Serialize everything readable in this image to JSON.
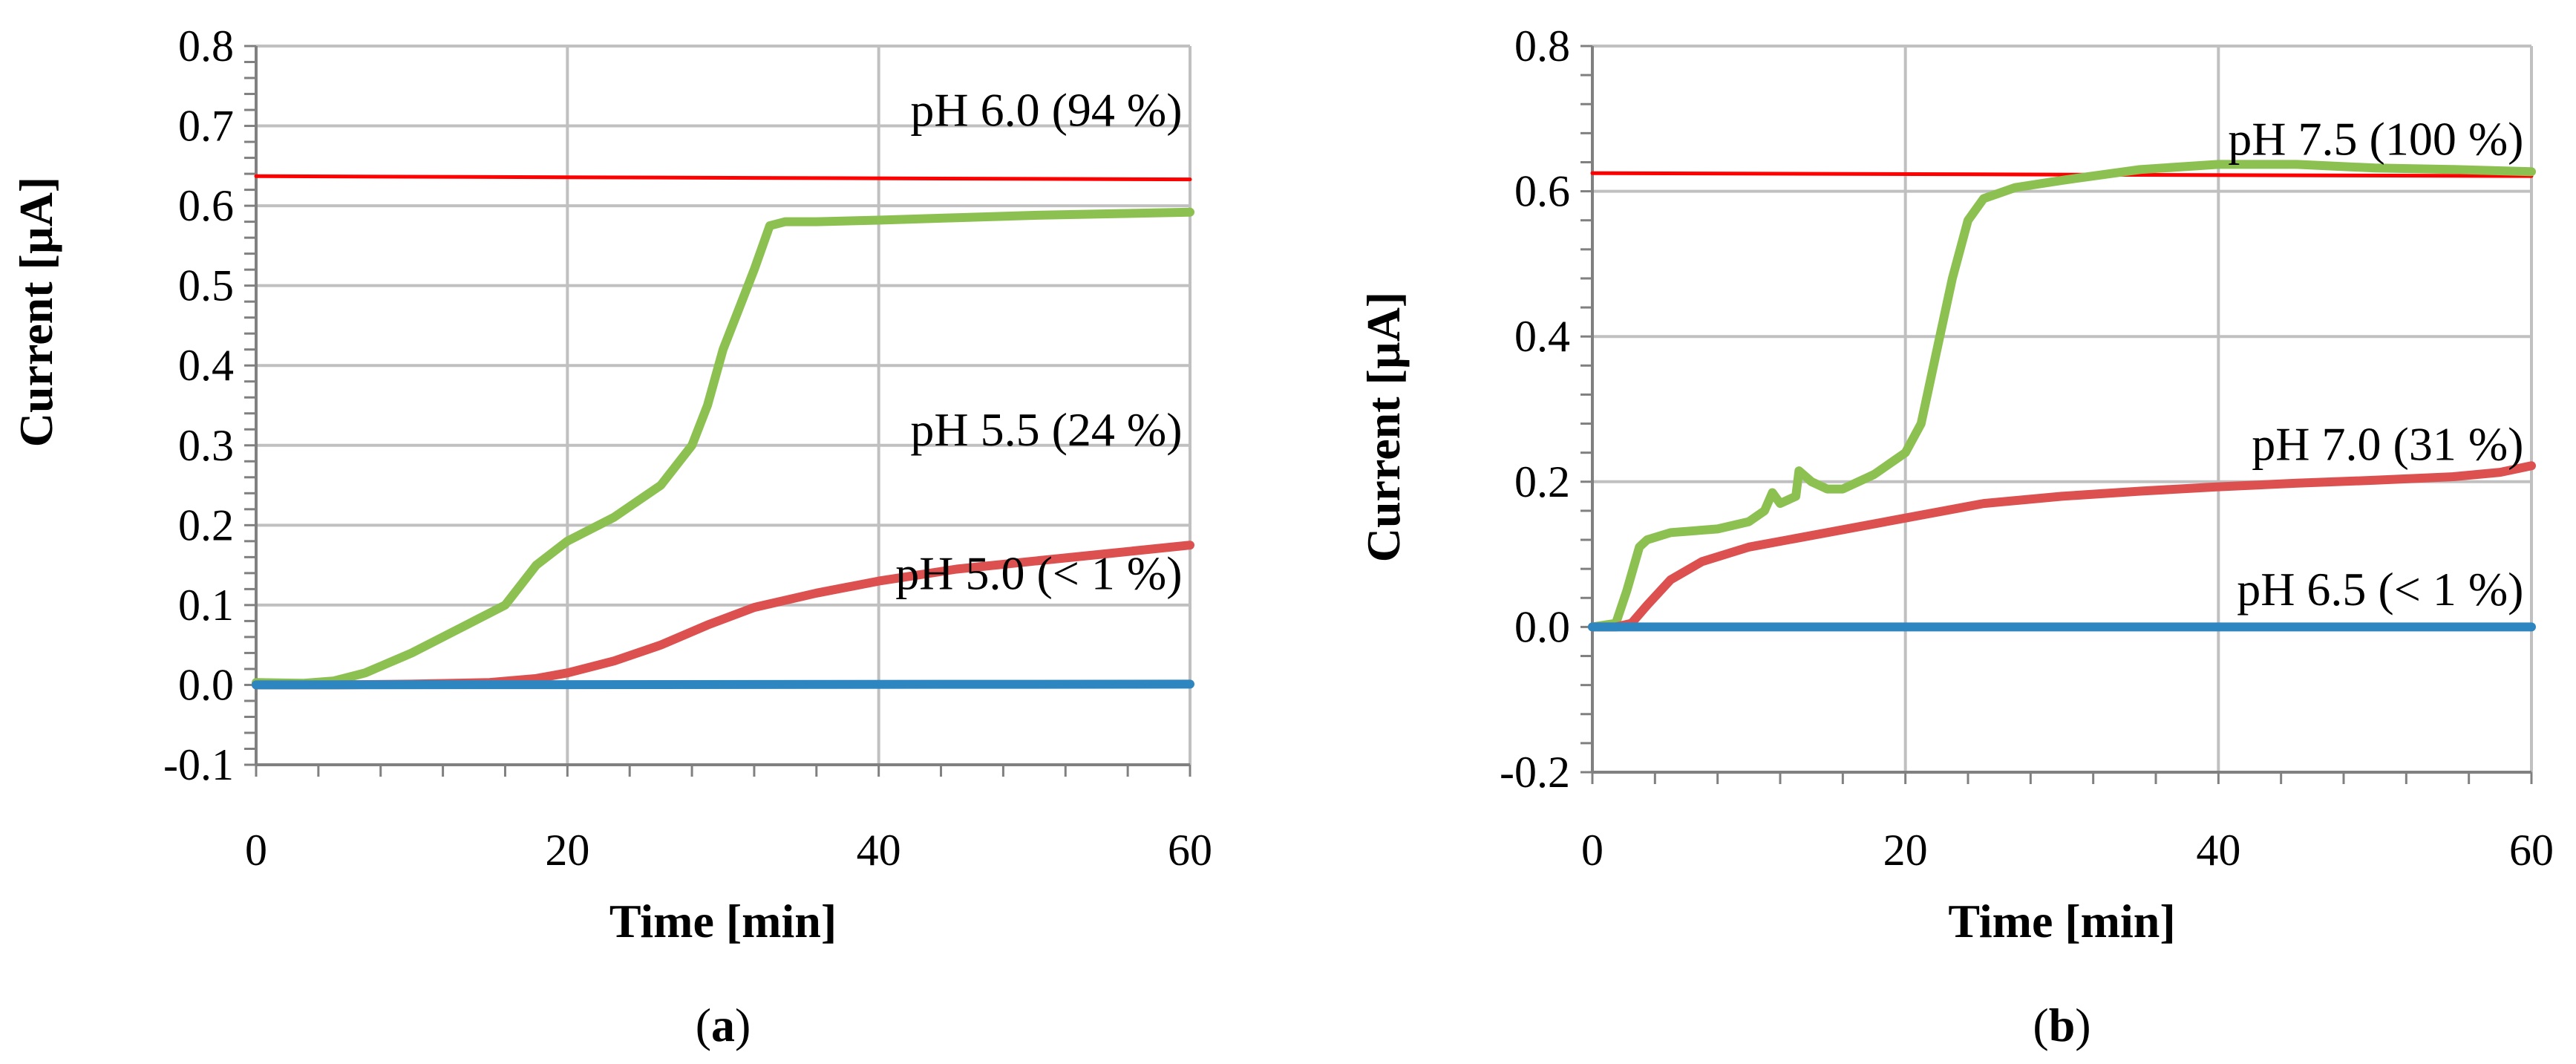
{
  "chart_data": [
    {
      "type": "line",
      "panel": "a",
      "caption": {
        "open": "(",
        "letter": "a",
        "close": ")"
      },
      "xlabel": "Time [min]",
      "ylabel": "Current [µA]",
      "xlim": [
        0,
        60
      ],
      "ylim": [
        -0.1,
        0.8
      ],
      "xticks": [
        0,
        20,
        40,
        60
      ],
      "xtick_labels": [
        "0",
        "20",
        "40",
        "60"
      ],
      "yticks": [
        -0.1,
        0.0,
        0.1,
        0.2,
        0.3,
        0.4,
        0.5,
        0.6,
        0.7,
        0.8
      ],
      "ytick_labels": [
        "-0.1",
        "0.0",
        "0.1",
        "0.2",
        "0.3",
        "0.4",
        "0.5",
        "0.6",
        "0.7",
        "0.8"
      ],
      "grid": true,
      "series": [
        {
          "name": "reference",
          "color": "#ff0000",
          "style": "thin",
          "x": [
            0,
            60
          ],
          "y": [
            0.637,
            0.633
          ]
        },
        {
          "name": "pH 6.0",
          "color": "#8cc152",
          "style": "thick",
          "x": [
            0,
            3,
            5,
            7,
            10,
            13,
            16,
            18,
            20,
            23,
            26,
            28,
            29,
            30,
            31,
            32,
            33,
            34,
            36,
            40,
            45,
            50,
            55,
            60
          ],
          "y": [
            0.003,
            0.002,
            0.005,
            0.015,
            0.04,
            0.07,
            0.1,
            0.15,
            0.18,
            0.21,
            0.25,
            0.3,
            0.35,
            0.42,
            0.47,
            0.52,
            0.575,
            0.58,
            0.58,
            0.582,
            0.585,
            0.588,
            0.59,
            0.592
          ]
        },
        {
          "name": "pH 5.5",
          "color": "#dc5050",
          "style": "thick",
          "x": [
            0,
            5,
            10,
            15,
            18,
            20,
            23,
            26,
            29,
            32,
            36,
            40,
            45,
            50,
            55,
            60
          ],
          "y": [
            0,
            0,
            0.001,
            0.003,
            0.008,
            0.015,
            0.03,
            0.05,
            0.075,
            0.097,
            0.115,
            0.13,
            0.145,
            0.155,
            0.165,
            0.175
          ]
        },
        {
          "name": "pH 5.0",
          "color": "#2e86c1",
          "style": "thick",
          "x": [
            0,
            60
          ],
          "y": [
            0,
            0.001
          ]
        }
      ],
      "annotations": [
        {
          "text": "pH 6.0 (94 %)",
          "x": 59.5,
          "y": 0.7
        },
        {
          "text": "pH 5.5 (24 %)",
          "x": 59.5,
          "y": 0.3
        },
        {
          "text": "pH 5.0 (< 1 %)",
          "x": 59.5,
          "y": 0.12
        }
      ]
    },
    {
      "type": "line",
      "panel": "b",
      "caption": {
        "open": "(",
        "letter": "b",
        "close": ")"
      },
      "xlabel": "Time [min]",
      "ylabel": "Current [µA]",
      "xlim": [
        0,
        60
      ],
      "ylim": [
        -0.2,
        0.8
      ],
      "xticks": [
        0,
        20,
        40,
        60
      ],
      "xtick_labels": [
        "0",
        "20",
        "40",
        "60"
      ],
      "yticks": [
        -0.2,
        0.0,
        0.2,
        0.4,
        0.6,
        0.8
      ],
      "ytick_labels": [
        "-0.2",
        "0.0",
        "0.2",
        "0.4",
        "0.6",
        "0.8"
      ],
      "grid": true,
      "series": [
        {
          "name": "reference",
          "color": "#ff0000",
          "style": "thin",
          "x": [
            0,
            60
          ],
          "y": [
            0.625,
            0.621
          ]
        },
        {
          "name": "pH 7.5",
          "color": "#8cc152",
          "style": "thick",
          "x": [
            0,
            1.5,
            2.2,
            3,
            3.5,
            5,
            8,
            10,
            11,
            11.5,
            12,
            13,
            13.2,
            14,
            15,
            16,
            18,
            20,
            21,
            22,
            23,
            24,
            25,
            27,
            30,
            35,
            40,
            45,
            50,
            55,
            60
          ],
          "y": [
            0,
            0.005,
            0.05,
            0.11,
            0.12,
            0.13,
            0.135,
            0.145,
            0.16,
            0.185,
            0.17,
            0.18,
            0.215,
            0.2,
            0.19,
            0.19,
            0.21,
            0.24,
            0.28,
            0.38,
            0.48,
            0.56,
            0.59,
            0.605,
            0.615,
            0.63,
            0.637,
            0.637,
            0.632,
            0.63,
            0.627
          ]
        },
        {
          "name": "pH 7.0",
          "color": "#dc5050",
          "style": "thick",
          "x": [
            0,
            1.5,
            2.5,
            3.5,
            5,
            7,
            10,
            15,
            20,
            25,
            30,
            35,
            40,
            45,
            50,
            55,
            58,
            60
          ],
          "y": [
            0,
            0,
            0.005,
            0.03,
            0.065,
            0.09,
            0.11,
            0.13,
            0.15,
            0.17,
            0.18,
            0.187,
            0.193,
            0.198,
            0.202,
            0.207,
            0.213,
            0.222
          ]
        },
        {
          "name": "pH 6.5",
          "color": "#2e86c1",
          "style": "thick",
          "x": [
            0,
            60
          ],
          "y": [
            0,
            0
          ]
        }
      ],
      "annotations": [
        {
          "text": "pH 7.5 (100 %)",
          "x": 59.5,
          "y": 0.65
        },
        {
          "text": "pH 7.0 (31 %)",
          "x": 59.5,
          "y": 0.23
        },
        {
          "text": "pH 6.5 (< 1 %)",
          "x": 59.5,
          "y": 0.03
        }
      ]
    }
  ]
}
